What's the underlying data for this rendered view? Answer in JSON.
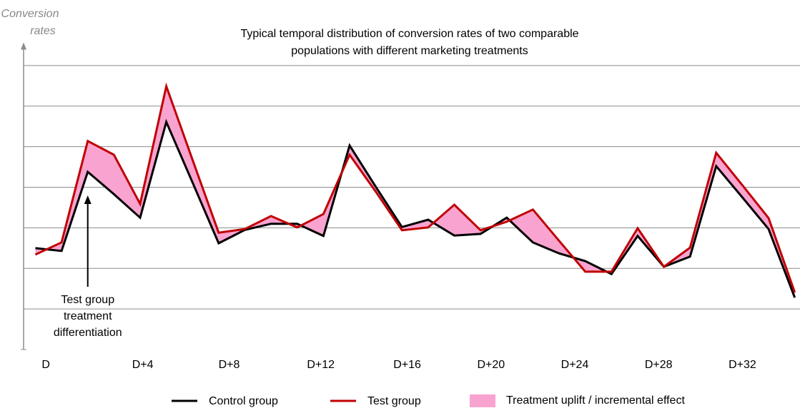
{
  "chart_data": {
    "type": "line",
    "title": [
      "Typical temporal distribution of conversion rates of two comparable",
      "populations with different marketing treatments"
    ],
    "y_label": [
      "Conversion",
      "rates"
    ],
    "x": [
      0,
      1,
      2,
      3,
      4,
      5,
      6,
      7,
      8,
      9,
      10,
      11,
      12,
      13,
      14,
      15,
      16,
      17,
      18,
      19,
      20,
      21,
      22,
      23,
      24,
      25,
      26,
      27,
      28,
      29
    ],
    "xlim": [
      -0.45,
      29.2
    ],
    "xticks": [
      {
        "value": 0.4,
        "label": "D"
      },
      {
        "value": 4.1,
        "label": "D+4"
      },
      {
        "value": 7.4,
        "label": "D+8"
      },
      {
        "value": 10.9,
        "label": "D+12"
      },
      {
        "value": 14.2,
        "label": "D+16"
      },
      {
        "value": 17.4,
        "label": "D+20"
      },
      {
        "value": 20.6,
        "label": "D+24"
      },
      {
        "value": 23.8,
        "label": "D+28"
      },
      {
        "value": 27.0,
        "label": "D+32"
      }
    ],
    "ylim": [
      0,
      7.5
    ],
    "yticks": [
      1,
      2,
      3,
      4,
      5,
      6,
      7
    ],
    "grid": true,
    "series": [
      {
        "name": "Control group",
        "color": "#000000",
        "values": [
          2.5,
          2.43,
          4.38,
          3.83,
          3.25,
          5.61,
          4.12,
          2.62,
          2.95,
          3.1,
          3.1,
          2.8,
          5.03,
          4.01,
          3.02,
          3.2,
          2.81,
          2.85,
          3.25,
          2.64,
          2.37,
          2.18,
          1.86,
          2.8,
          2.04,
          2.29,
          4.52,
          3.75,
          2.97,
          1.28
        ]
      },
      {
        "name": "Test group",
        "color": "#c00000",
        "values": [
          2.34,
          2.64,
          5.14,
          4.8,
          3.59,
          6.49,
          4.68,
          2.88,
          2.97,
          3.29,
          3.01,
          3.34,
          4.8,
          3.89,
          2.94,
          3.01,
          3.57,
          2.94,
          3.15,
          3.45,
          2.68,
          1.92,
          1.92,
          2.99,
          2.04,
          2.51,
          4.85,
          4.05,
          3.24,
          1.41
        ]
      }
    ],
    "fill": {
      "name": "Treatment uplift / incremental effect",
      "color": "#f9a3d0"
    },
    "annotation": {
      "x": 2,
      "lines": [
        "Test group",
        "treatment",
        "differentiation"
      ]
    }
  }
}
